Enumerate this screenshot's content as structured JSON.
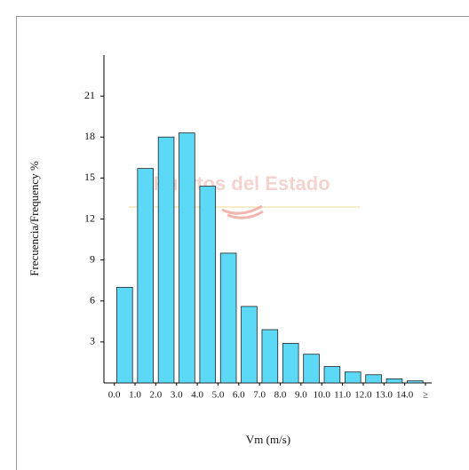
{
  "chart_data": {
    "type": "histogram",
    "watermark": "Puertos del Estado",
    "xlabel": "Vm (m/s)",
    "ylabel": "Frecuencia/Frequency %",
    "bins": [
      0,
      1,
      2,
      3,
      4,
      5,
      6,
      7,
      8,
      9,
      10,
      11,
      12,
      13,
      14,
      15
    ],
    "counts": [
      7.0,
      15.7,
      18.0,
      18.3,
      14.4,
      9.5,
      5.6,
      3.9,
      2.9,
      2.1,
      1.2,
      0.8,
      0.6,
      0.3,
      0.15
    ],
    "color": "#5cd9f7",
    "xlim": [
      -0.5,
      15.3
    ],
    "ylim": [
      0,
      24
    ],
    "xticks": [
      {
        "value": 0,
        "label": "0.0"
      },
      {
        "value": 1,
        "label": "1.0"
      },
      {
        "value": 2,
        "label": "2.0"
      },
      {
        "value": 3,
        "label": "3.0"
      },
      {
        "value": 4,
        "label": "4.0"
      },
      {
        "value": 5,
        "label": "5.0"
      },
      {
        "value": 6,
        "label": "6.0"
      },
      {
        "value": 7,
        "label": "7.0"
      },
      {
        "value": 8,
        "label": "8.0"
      },
      {
        "value": 9,
        "label": "9.0"
      },
      {
        "value": 10,
        "label": "10.0"
      },
      {
        "value": 11,
        "label": "11.0"
      },
      {
        "value": 12,
        "label": "12.0"
      },
      {
        "value": 13,
        "label": "13.0"
      },
      {
        "value": 14,
        "label": "14.0"
      },
      {
        "value": 15,
        "label": "≥"
      }
    ],
    "yticks": [
      3,
      6,
      9,
      12,
      15,
      18,
      21
    ]
  }
}
